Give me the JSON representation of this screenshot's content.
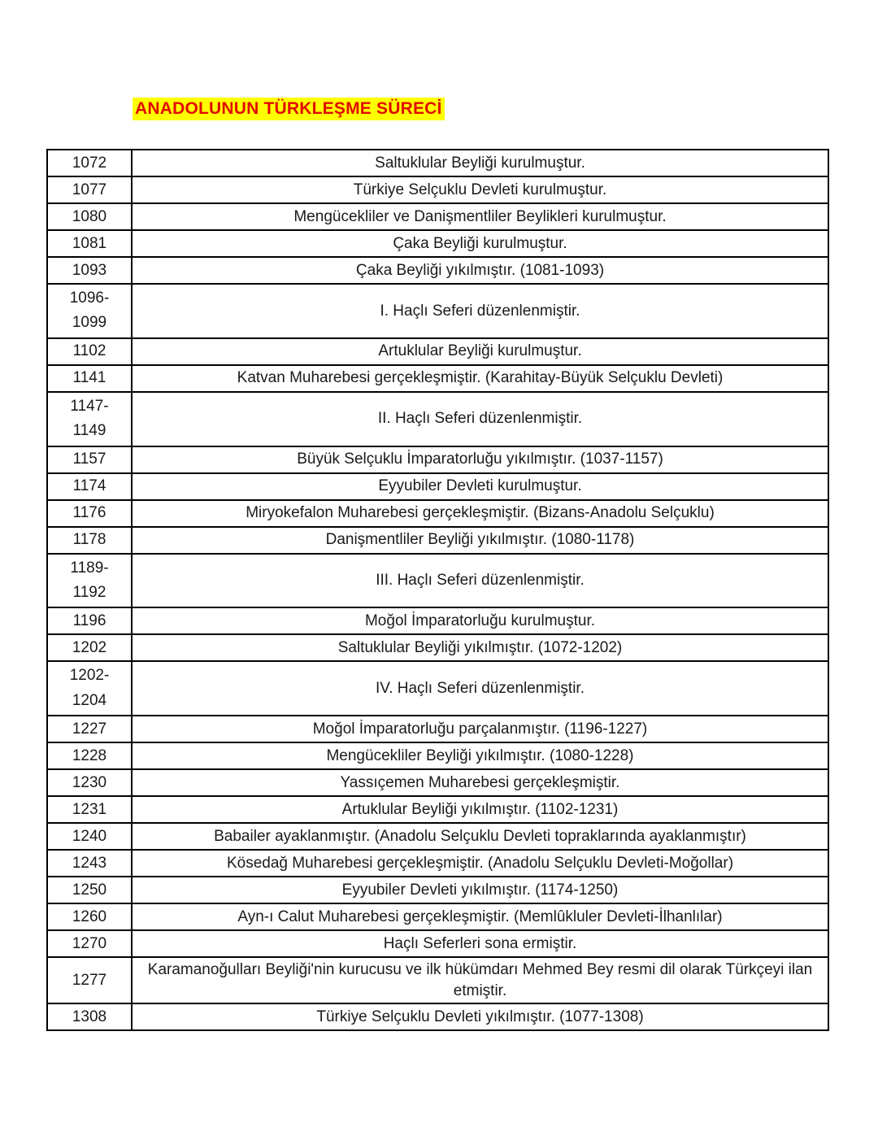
{
  "page": {
    "title": "ANADOLUNUN TÜRKLEŞME SÜRECİ"
  },
  "colors": {
    "title_text": "#e10b00",
    "title_highlight": "#ffff00",
    "table_border": "#000000",
    "text": "#1a1a1a",
    "background": "#ffffff"
  },
  "table": {
    "columns": [
      "year",
      "event"
    ],
    "rows": [
      {
        "year": "1072",
        "event": "Saltuklular Beyliği kurulmuştur."
      },
      {
        "year": "1077",
        "event": "Türkiye Selçuklu Devleti kurulmuştur."
      },
      {
        "year": "1080",
        "event": "Mengücekliler ve Danişmentliler Beylikleri kurulmuştur."
      },
      {
        "year": "1081",
        "event": "Çaka Beyliği kurulmuştur."
      },
      {
        "year": "1093",
        "event": "Çaka Beyliği yıkılmıştır. (1081-1093)"
      },
      {
        "year": "1096-\n1099",
        "event": "I. Haçlı Seferi düzenlenmiştir."
      },
      {
        "year": "1102",
        "event": "Artuklular Beyliği kurulmuştur."
      },
      {
        "year": "1141",
        "event": "Katvan Muharebesi gerçekleşmiştir. (Karahitay-Büyük Selçuklu Devleti)"
      },
      {
        "year": "1147-\n1149",
        "event": "II. Haçlı Seferi düzenlenmiştir."
      },
      {
        "year": "1157",
        "event": "Büyük Selçuklu İmparatorluğu yıkılmıştır. (1037-1157)"
      },
      {
        "year": "1174",
        "event": "Eyyubiler Devleti kurulmuştur."
      },
      {
        "year": "1176",
        "event": "Miryokefalon Muharebesi gerçekleşmiştir. (Bizans-Anadolu Selçuklu)"
      },
      {
        "year": "1178",
        "event": "Danişmentliler Beyliği yıkılmıştır. (1080-1178)"
      },
      {
        "year": "1189-\n1192",
        "event": "III. Haçlı Seferi düzenlenmiştir."
      },
      {
        "year": "1196",
        "event": "Moğol İmparatorluğu kurulmuştur."
      },
      {
        "year": "1202",
        "event": "Saltuklular Beyliği yıkılmıştır. (1072-1202)"
      },
      {
        "year": "1202-\n1204",
        "event": "IV. Haçlı Seferi düzenlenmiştir."
      },
      {
        "year": "1227",
        "event": "Moğol İmparatorluğu parçalanmıştır. (1196-1227)"
      },
      {
        "year": "1228",
        "event": "Mengücekliler Beyliği yıkılmıştır. (1080-1228)"
      },
      {
        "year": "1230",
        "event": "Yassıçemen Muharebesi gerçekleşmiştir."
      },
      {
        "year": "1231",
        "event": "Artuklular Beyliği yıkılmıştır. (1102-1231)"
      },
      {
        "year": "1240",
        "event": "Babailer ayaklanmıştır. (Anadolu Selçuklu Devleti topraklarında ayaklanmıştır)"
      },
      {
        "year": "1243",
        "event": "Kösedağ Muharebesi gerçekleşmiştir. (Anadolu Selçuklu Devleti-Moğollar)"
      },
      {
        "year": "1250",
        "event": "Eyyubiler Devleti yıkılmıştır. (1174-1250)"
      },
      {
        "year": "1260",
        "event": "Ayn-ı Calut Muharebesi gerçekleşmiştir. (Memlûkluler Devleti-İlhanlılar)"
      },
      {
        "year": "1270",
        "event": "Haçlı Seferleri sona ermiştir."
      },
      {
        "year": "1277",
        "event": "Karamanoğulları Beyliği'nin kurucusu ve ilk hükümdarı Mehmed Bey resmi dil olarak Türkçeyi ilan etmiştir."
      },
      {
        "year": "1308",
        "event": "Türkiye Selçuklu Devleti yıkılmıştır. (1077-1308)"
      }
    ]
  }
}
